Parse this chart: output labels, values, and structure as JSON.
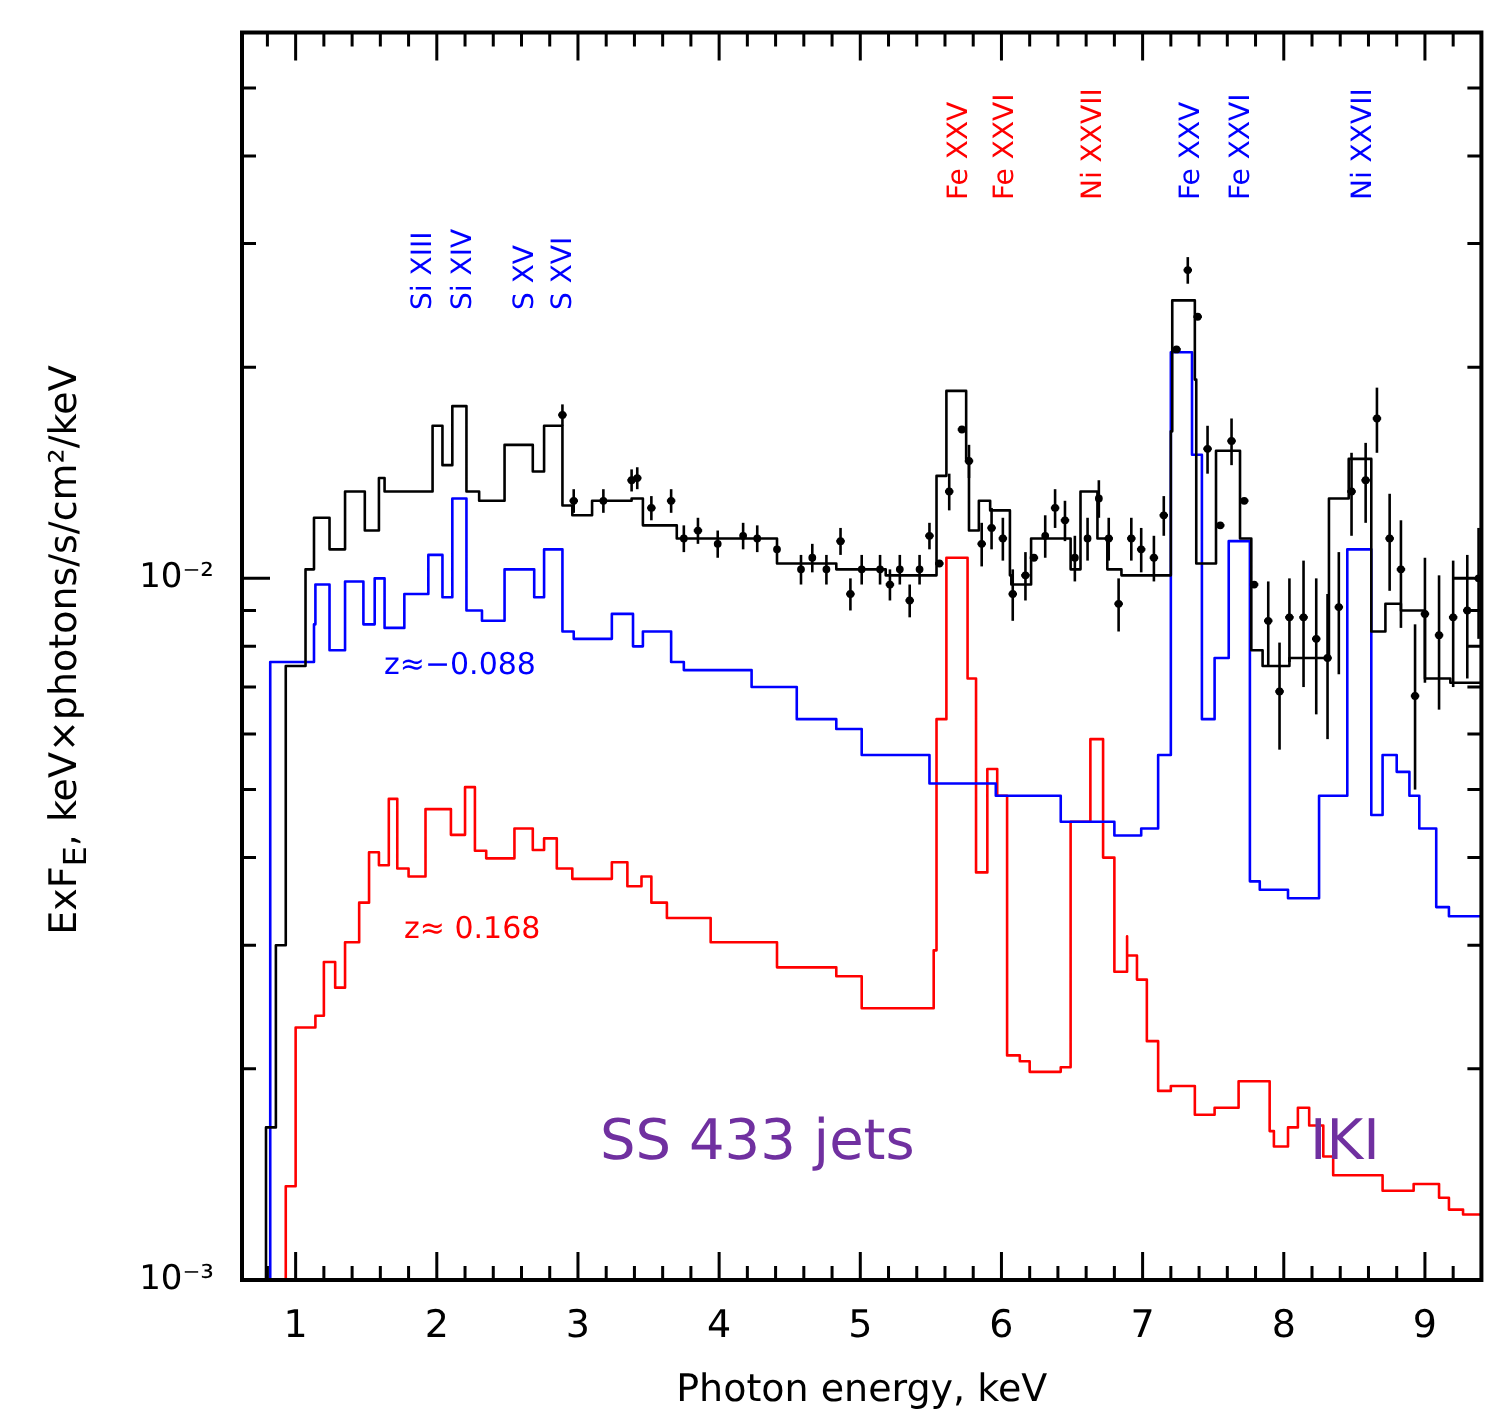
{
  "chart_data": {
    "type": "step",
    "xlabel": "Photon energy, keV",
    "ylabel": "ExF$_{E}$, keV×photons/s/cm²/keV",
    "log": "y",
    "grid": false,
    "legend": false,
    "xlim": [
      0.62,
      9.4
    ],
    "ylim": [
      0.001,
      0.06
    ],
    "xticks": [
      {
        "value": 0.8,
        "label": null
      },
      1,
      {
        "value": 1.2,
        "label": null
      },
      {
        "value": 1.4,
        "label": null
      },
      {
        "value": 1.6,
        "label": null
      },
      {
        "value": 1.8,
        "label": null
      },
      2,
      {
        "value": 2.2,
        "label": null
      },
      {
        "value": 2.4,
        "label": null
      },
      {
        "value": 2.6,
        "label": null
      },
      {
        "value": 2.8,
        "label": null
      },
      3,
      {
        "value": 3.2,
        "label": null
      },
      {
        "value": 3.4,
        "label": null
      },
      {
        "value": 3.6,
        "label": null
      },
      {
        "value": 3.8,
        "label": null
      },
      4,
      {
        "value": 4.2,
        "label": null
      },
      {
        "value": 4.4,
        "label": null
      },
      {
        "value": 4.6,
        "label": null
      },
      {
        "value": 4.8,
        "label": null
      },
      5,
      {
        "value": 5.2,
        "label": null
      },
      {
        "value": 5.4,
        "label": null
      },
      {
        "value": 5.6,
        "label": null
      },
      {
        "value": 5.8,
        "label": null
      },
      6,
      {
        "value": 6.2,
        "label": null
      },
      {
        "value": 6.4,
        "label": null
      },
      {
        "value": 6.6,
        "label": null
      },
      {
        "value": 6.8,
        "label": null
      },
      7,
      {
        "value": 7.2,
        "label": null
      },
      {
        "value": 7.4,
        "label": null
      },
      {
        "value": 7.6,
        "label": null
      },
      {
        "value": 7.8,
        "label": null
      },
      8,
      {
        "value": 8.2,
        "label": null
      },
      {
        "value": 8.4,
        "label": null
      },
      {
        "value": 8.6,
        "label": null
      },
      {
        "value": 8.8,
        "label": null
      },
      9,
      {
        "value": 9.2,
        "label": null
      }
    ],
    "yticks": [
      {
        "value": 0.001,
        "label": "10⁻³"
      },
      {
        "value": 0.002,
        "label": null
      },
      {
        "value": 0.003,
        "label": null
      },
      {
        "value": 0.004,
        "label": null
      },
      {
        "value": 0.005,
        "label": null
      },
      {
        "value": 0.006,
        "label": null
      },
      {
        "value": 0.007,
        "label": null
      },
      {
        "value": 0.008,
        "label": null
      },
      {
        "value": 0.009,
        "label": null
      },
      {
        "value": 0.01,
        "label": "10⁻²"
      },
      {
        "value": 0.02,
        "label": null
      },
      {
        "value": 0.03,
        "label": null
      },
      {
        "value": 0.04,
        "label": null
      },
      {
        "value": 0.05,
        "label": null
      }
    ],
    "series": [
      {
        "color": "#000000",
        "x": [
          0.79,
          0.86,
          0.93,
          1.07,
          1.13,
          1.24,
          1.35,
          1.49,
          1.59,
          1.63,
          1.97,
          2.04,
          2.11,
          2.21,
          2.3,
          2.48,
          2.68,
          2.76,
          2.89,
          2.96,
          3.1,
          3.38,
          3.46,
          3.7,
          3.94,
          4.41,
          4.83,
          5.18,
          5.54,
          5.61,
          5.7,
          5.75,
          5.77,
          5.84,
          5.92,
          6.06,
          6.07,
          6.21,
          6.35,
          6.49,
          6.56,
          6.68,
          6.75,
          6.85,
          7.2,
          7.21,
          7.28,
          7.37,
          7.38,
          7.45,
          7.52,
          7.62,
          7.69,
          7.77,
          7.85,
          8.04,
          8.32,
          8.46,
          8.55,
          8.62,
          8.72,
          8.83,
          9.0,
          9.18,
          9.4
        ],
        "values": [
          0.001,
          0.00165,
          0.003,
          0.0075,
          0.0103,
          0.0122,
          0.011,
          0.0133,
          0.0117,
          0.0139,
          0.0133,
          0.0165,
          0.0145,
          0.0176,
          0.0133,
          0.0129,
          0.0155,
          0.0142,
          0.0165,
          0.0127,
          0.0123,
          0.0129,
          0.013,
          0.0119,
          0.0114,
          0.0114,
          0.0105,
          0.0103,
          0.0101,
          0.014,
          0.0185,
          0.0185,
          0.0148,
          0.0117,
          0.0129,
          0.0125,
          0.0101,
          0.0098,
          0.0114,
          0.0114,
          0.0103,
          0.0133,
          0.0114,
          0.0103,
          0.0101,
          0.0162,
          0.0249,
          0.0249,
          0.0192,
          0.0105,
          0.0105,
          0.0152,
          0.0152,
          0.0114,
          0.0079,
          0.0075,
          0.0077,
          0.013,
          0.0148,
          0.0148,
          0.0084,
          0.0092,
          0.009,
          0.0072,
          0.0071
        ]
      },
      {
        "type": "scatter",
        "color": "#000000",
        "x": [
          2.89,
          2.97,
          3.18,
          3.38,
          3.42,
          3.52,
          3.66,
          3.75,
          3.85,
          3.99,
          4.17,
          4.27,
          4.41,
          4.58,
          4.66,
          4.76,
          4.86,
          4.93,
          5.01,
          5.14,
          5.21,
          5.28,
          5.35,
          5.42,
          5.49,
          5.56,
          5.63,
          5.72,
          5.77,
          5.86,
          5.93,
          6.01,
          6.08,
          6.17,
          6.23,
          6.31,
          6.38,
          6.45,
          6.52,
          6.61,
          6.69,
          6.76,
          6.83,
          6.92,
          6.99,
          7.08,
          7.15,
          7.24,
          7.32,
          7.39,
          7.46,
          7.55,
          7.63,
          7.72,
          7.79,
          7.89,
          7.97,
          8.04,
          8.14,
          8.23,
          8.31,
          8.39,
          8.48,
          8.58,
          8.66,
          8.75,
          8.83,
          8.93,
          9.0,
          9.1,
          9.2,
          9.3,
          9.38
        ],
        "values": [
          0.0171,
          0.0129,
          0.0129,
          0.0138,
          0.0139,
          0.0126,
          0.0129,
          0.0114,
          0.0117,
          0.0112,
          0.0115,
          0.0114,
          0.011,
          0.0103,
          0.0107,
          0.0103,
          0.0113,
          0.0095,
          0.0103,
          0.0103,
          0.0098,
          0.0103,
          0.0093,
          0.0103,
          0.0115,
          0.0105,
          0.0133,
          0.0163,
          0.0147,
          0.0112,
          0.0118,
          0.0114,
          0.0095,
          0.0101,
          0.0107,
          0.0115,
          0.0126,
          0.0121,
          0.0107,
          0.0114,
          0.013,
          0.0114,
          0.0092,
          0.0114,
          0.011,
          0.0107,
          0.0123,
          0.0212,
          0.0275,
          0.0236,
          0.0153,
          0.0119,
          0.0157,
          0.0129,
          0.0098,
          0.0087,
          0.0069,
          0.0088,
          0.0088,
          0.0082,
          0.0077,
          0.0091,
          0.0133,
          0.0138,
          0.0169,
          0.0114,
          0.0103,
          0.0068,
          0.0089,
          0.0083,
          0.0088,
          0.009,
          0.01
        ],
        "errors": [
          0.0006,
          0.0005,
          0.0005,
          0.0005,
          0.0005,
          0.0005,
          0.0005,
          0.0005,
          0.0005,
          0.0005,
          0.0005,
          0.0005,
          null,
          0.0005,
          0.0005,
          0.0005,
          0.0005,
          0.0005,
          0.0005,
          0.0005,
          0.0005,
          0.0005,
          0.0005,
          0.0005,
          0.0005,
          null,
          0.0008,
          null,
          0.0008,
          0.0008,
          0.0008,
          0.0008,
          0.0008,
          0.0008,
          null,
          0.0008,
          0.0008,
          0.0008,
          0.0008,
          0.0008,
          0.0008,
          0.0008,
          0.0008,
          0.0008,
          0.0008,
          0.0008,
          0.0008,
          null,
          0.0012,
          null,
          0.0012,
          null,
          0.0012,
          null,
          null,
          0.0012,
          0.0012,
          0.0012,
          0.0018,
          0.0018,
          0.0018,
          0.0018,
          0.0018,
          0.0018,
          0.0018,
          0.0018,
          0.0018,
          0.0018,
          0.0018,
          0.0018,
          0.0018,
          0.0018,
          0.0018
        ],
        "xerrors": [
          0.03,
          0.03,
          null,
          0.03,
          0.03,
          0.03,
          0.03,
          null,
          0.03,
          null,
          null,
          null,
          null,
          null,
          null,
          null,
          0.03,
          0.03,
          null,
          null,
          0.03,
          null,
          0.03,
          null,
          0.03,
          0.03,
          0.03,
          0.03,
          0.03,
          0.03,
          0.03,
          0.03,
          0.03,
          0.03,
          0.03,
          null,
          0.03,
          0.03,
          null,
          null,
          null,
          0.03,
          0.03,
          0.03,
          0.03,
          0.03,
          0.03,
          0.03,
          0.03,
          0.03,
          0.03,
          0.03,
          0.03,
          0.03,
          0.03,
          0.03,
          0.03,
          0.03,
          0.03,
          0.03,
          0.03,
          0.03,
          0.03,
          0.03,
          0.03,
          0.03,
          0.03,
          0.03,
          0.03,
          0.03,
          0.03,
          0.03,
          0.03
        ]
      },
      {
        "name": "z≈−0.088",
        "color": "#0000ff",
        "x": [
          0.82,
          1.13,
          1.14,
          1.24,
          1.35,
          1.48,
          1.56,
          1.63,
          1.77,
          1.94,
          2.04,
          2.11,
          2.21,
          2.32,
          2.48,
          2.69,
          2.76,
          2.89,
          2.97,
          3.24,
          3.39,
          3.46,
          3.66,
          3.75,
          4.23,
          4.55,
          4.83,
          5.01,
          5.49,
          5.96,
          6.42,
          6.8,
          6.99,
          7.11,
          7.11,
          7.2,
          7.2,
          7.27,
          7.35,
          7.37,
          7.42,
          7.44,
          7.51,
          7.52,
          7.61,
          7.61,
          7.76,
          7.76,
          7.83,
          8.03,
          8.25,
          8.32,
          8.45,
          8.45,
          8.54,
          8.62,
          8.7,
          8.8,
          8.89,
          8.96,
          9.08,
          9.17,
          9.27,
          9.4
        ],
        "values": [
          0.001,
          0.0076,
          0.0086,
          0.0098,
          0.0079,
          0.0099,
          0.0086,
          0.01,
          0.0085,
          0.0095,
          0.0108,
          0.0094,
          0.013,
          0.009,
          0.0087,
          0.0103,
          0.0094,
          0.011,
          0.0084,
          0.0082,
          0.0089,
          0.008,
          0.0084,
          0.0076,
          0.0074,
          0.007,
          0.0063,
          0.0061,
          0.0056,
          0.0051,
          0.0049,
          0.0045,
          0.0043,
          0.0044,
          0.0056,
          0.0056,
          0.0121,
          0.021,
          0.021,
          0.015,
          0.015,
          0.0063,
          0.0063,
          0.0077,
          0.0077,
          0.0113,
          0.0113,
          0.0042,
          0.0037,
          0.0036,
          0.0035,
          0.0049,
          0.0049,
          0.0092,
          0.011,
          0.011,
          0.0046,
          0.0056,
          0.0053,
          0.0049,
          0.0044,
          0.0034,
          0.0033,
          0.0033
        ]
      },
      {
        "name": "z≈ 0.168",
        "color": "#ff0000",
        "x": [
          0.93,
          1.0,
          1.14,
          1.2,
          1.28,
          1.35,
          1.45,
          1.52,
          1.59,
          1.66,
          1.72,
          1.8,
          1.92,
          2.1,
          2.2,
          2.27,
          2.35,
          2.55,
          2.68,
          2.76,
          2.85,
          2.96,
          3.24,
          3.35,
          3.45,
          3.52,
          3.63,
          3.94,
          4.41,
          4.83,
          5.01,
          5.39,
          5.52,
          5.54,
          5.61,
          5.68,
          5.76,
          5.76,
          5.82,
          5.82,
          5.9,
          5.9,
          5.97,
          5.97,
          6.04,
          6.04,
          6.13,
          6.2,
          6.34,
          6.42,
          6.49,
          6.49,
          6.56,
          6.63,
          6.65,
          6.72,
          6.72,
          6.8,
          6.8,
          6.89,
          6.89,
          6.96,
          7.03,
          7.11,
          7.2,
          7.37,
          7.51,
          7.68,
          7.76,
          7.9,
          7.93,
          8.03,
          8.1,
          8.18,
          8.28,
          8.35,
          8.7,
          8.92,
          9.1,
          9.17,
          9.27,
          9.4
        ],
        "values": [
          0.001,
          0.00136,
          0.00229,
          0.00238,
          0.00284,
          0.00261,
          0.00303,
          0.00345,
          0.00407,
          0.0039,
          0.00485,
          0.00386,
          0.00376,
          0.00469,
          0.00431,
          0.00504,
          0.00409,
          0.00399,
          0.0044,
          0.0041,
          0.00426,
          0.00386,
          0.00373,
          0.00394,
          0.00364,
          0.00376,
          0.00345,
          0.00328,
          0.00303,
          0.00279,
          0.00271,
          0.00244,
          0.00244,
          0.00295,
          0.0063,
          0.0107,
          0.0107,
          0.0072,
          0.0072,
          0.00381,
          0.00381,
          0.00535,
          0.00535,
          0.0049,
          0.0049,
          0.00266,
          0.00209,
          0.00205,
          0.00198,
          0.00198,
          0.00201,
          0.00251,
          0.0045,
          0.0045,
          0.0059,
          0.0059,
          0.004,
          0.004,
          0.00275,
          0.00275,
          0.00309,
          0.0029,
          0.00268,
          0.00219,
          0.00186,
          0.00189,
          0.00172,
          0.00176,
          0.00192,
          0.00192,
          0.00163,
          0.00155,
          0.00165,
          0.00176,
          0.00166,
          0.0015,
          0.00141,
          0.00134,
          0.00137,
          0.00131,
          0.00126,
          0.00124
        ]
      }
    ],
    "annotations": [
      "Si XIII",
      "Si XIV",
      "S XV",
      "S XVI",
      "Fe XXV",
      "Fe XXVI",
      "Ni XXVII",
      "Fe XXV",
      "Fe XXVI",
      "Ni XXVII",
      "SS 433 jets",
      "IKI"
    ]
  }
}
